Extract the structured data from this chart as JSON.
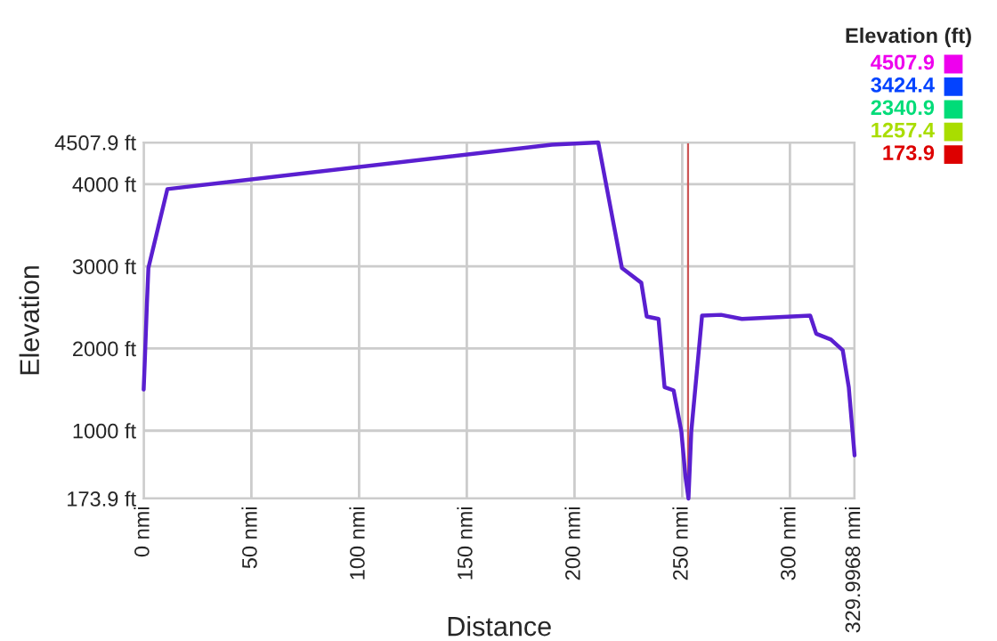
{
  "chart_data": {
    "type": "line",
    "xlabel": "Distance",
    "ylabel": "Elevation",
    "clabel": "Elevation (ft)",
    "x": [
      0,
      0.5,
      1.5,
      2.2,
      11,
      189.5,
      211,
      222,
      231,
      233.5,
      239,
      241.8,
      246,
      249.6,
      251.5,
      252.9,
      254.2,
      259.2,
      268,
      277.7,
      309.4,
      312.2,
      319,
      324.5,
      327.3,
      329.9968
    ],
    "values": [
      1500,
      1830,
      2540,
      2980,
      3940,
      4480,
      4507.9,
      2980,
      2800,
      2390,
      2360,
      1530,
      1490,
      990,
      440,
      173.9,
      990,
      2400,
      2410,
      2360,
      2400,
      2180,
      2110,
      1980,
      1530,
      700
    ],
    "color": "#5a1fd0",
    "clim": [
      173.9,
      4507.9
    ],
    "cticks": [
      173.9,
      1257.4,
      2340.9,
      3424.4,
      4507.9
    ],
    "xlim": [
      0,
      329.9968
    ],
    "xticks": [
      {
        "value": 0,
        "label": "0 nmi"
      },
      {
        "value": 50,
        "label": "50 nmi"
      },
      {
        "value": 100,
        "label": "100 nmi"
      },
      {
        "value": 150,
        "label": "150 nmi"
      },
      {
        "value": 200,
        "label": "200 nmi"
      },
      {
        "value": 250,
        "label": "250 nmi"
      },
      {
        "value": 300,
        "label": "300 nmi"
      },
      {
        "value": 329.9968,
        "label": "329.9968 nmi"
      }
    ],
    "ylim": [
      173.9,
      4507.9
    ],
    "yticks": [
      {
        "value": 173.9,
        "label": "173.9 ft"
      },
      {
        "value": 1000,
        "label": "1000 ft"
      },
      {
        "value": 2000,
        "label": "2000 ft"
      },
      {
        "value": 3000,
        "label": "3000 ft"
      },
      {
        "value": 4000,
        "label": "4000 ft"
      },
      {
        "value": 4507.9,
        "label": "4507.9 ft"
      }
    ],
    "ref_lines": [
      {
        "axis": "x",
        "value": 252.7,
        "color": "#cc5555"
      }
    ],
    "grid": true
  }
}
